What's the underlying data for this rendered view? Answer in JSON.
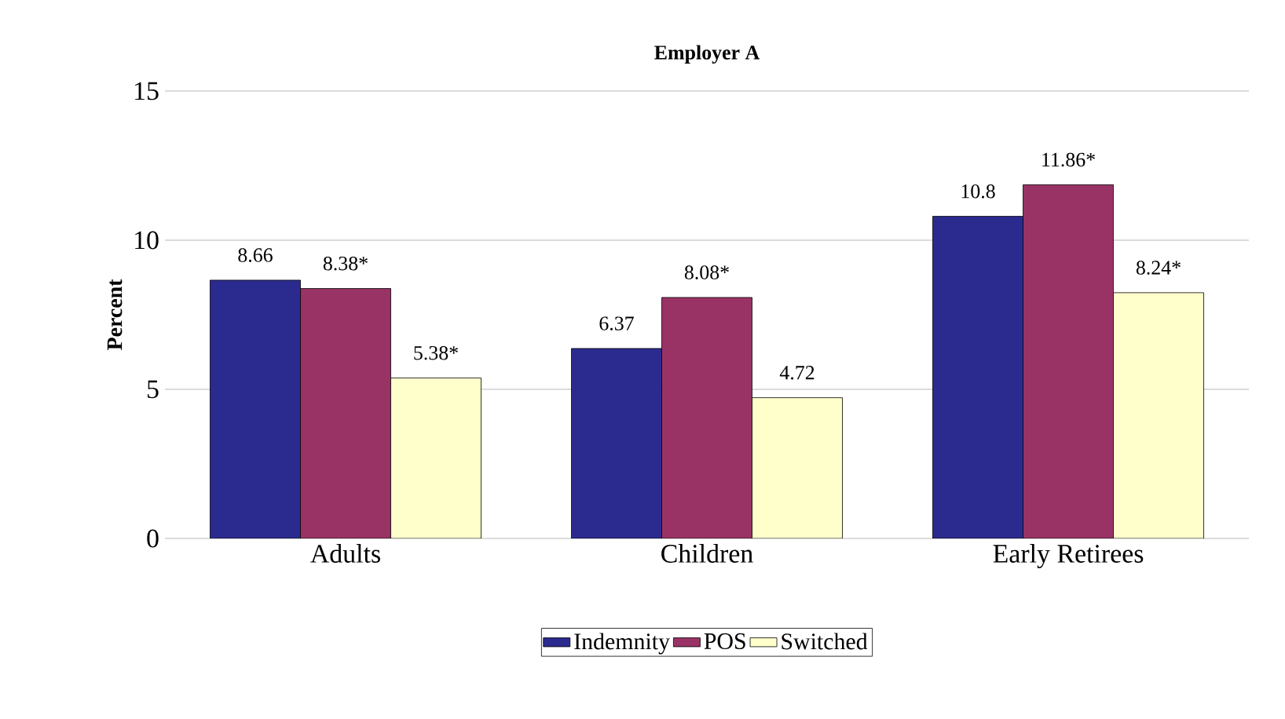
{
  "chart_data": {
    "type": "bar",
    "title": "Employer A",
    "ylabel": "Percent",
    "categories": [
      "Adults",
      "Children",
      "Early Retirees"
    ],
    "series": [
      {
        "name": "Indemnity",
        "color": "#2b2b8f",
        "values": [
          8.66,
          6.37,
          10.8
        ],
        "value_labels": [
          "8.66",
          "6.37",
          "10.8"
        ]
      },
      {
        "name": "POS",
        "color": "#993366",
        "values": [
          8.38,
          8.08,
          11.86
        ],
        "value_labels": [
          "8.38*",
          "8.08*",
          "11.86*"
        ]
      },
      {
        "name": "Switched",
        "color": "#ffffcc",
        "values": [
          5.38,
          4.72,
          8.24
        ],
        "value_labels": [
          "5.38*",
          "4.72",
          "8.24*"
        ]
      }
    ],
    "ylim": [
      0,
      15
    ],
    "yticks": [
      0,
      5,
      10,
      15
    ],
    "grid": "y",
    "legend": "bottom"
  }
}
